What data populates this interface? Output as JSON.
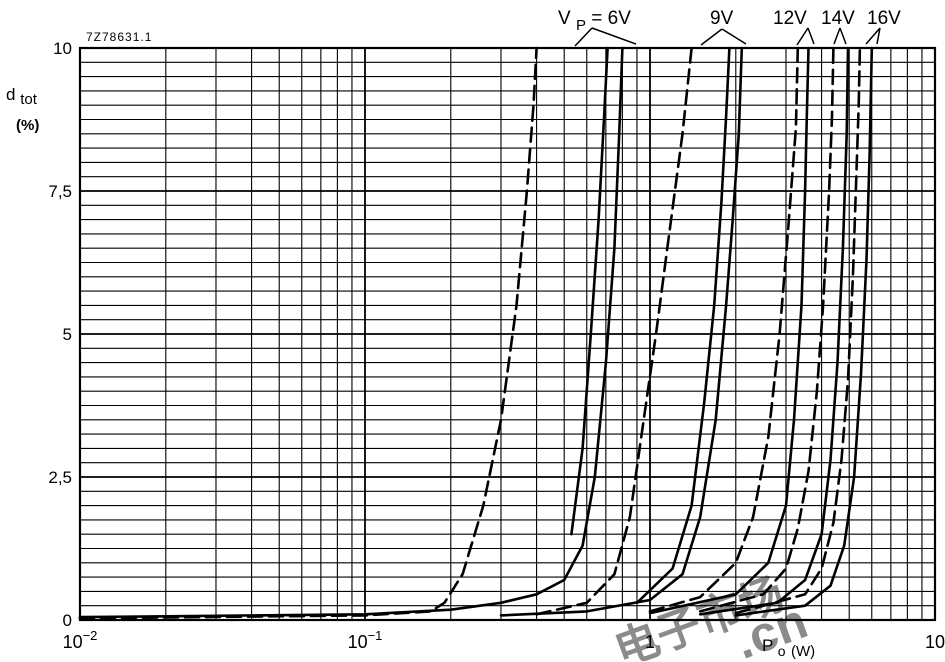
{
  "chart_data": {
    "type": "line",
    "figure_code": "7Z78631.1",
    "y_label_main": "d",
    "y_label_sub": "tot",
    "y_unit": "(%)",
    "x_label_main": "P",
    "x_label_sub": "o",
    "x_unit": "(W)",
    "x_scale": "log",
    "xlim": [
      0.01,
      10
    ],
    "ylim": [
      0,
      10
    ],
    "grid": true,
    "x_tick_labels": [
      {
        "value": 0.01,
        "base": "10",
        "exp": "−2"
      },
      {
        "value": 0.1,
        "base": "10",
        "exp": "−1"
      },
      {
        "value": 1,
        "base": "1",
        "exp": ""
      },
      {
        "value": 10,
        "base": "10",
        "exp": ""
      }
    ],
    "y_tick_labels": [
      {
        "value": 0,
        "text": "0"
      },
      {
        "value": 2.5,
        "text": "2,5"
      },
      {
        "value": 5,
        "text": "5"
      },
      {
        "value": 7.5,
        "text": "7,5"
      },
      {
        "value": 10,
        "text": "10"
      }
    ],
    "curve_labels": {
      "vp_main": "V",
      "vp_sub": "P",
      "vp_rest": " = 6V",
      "v9": "9V",
      "v12": "12V",
      "v14": "14V",
      "v16": "16V"
    },
    "series": [
      {
        "voltage": 6,
        "style": "dashed",
        "points": [
          [
            0.01,
            0.03
          ],
          [
            0.1,
            0.08
          ],
          [
            0.17,
            0.15
          ],
          [
            0.19,
            0.3
          ],
          [
            0.22,
            0.8
          ],
          [
            0.26,
            2.0
          ],
          [
            0.3,
            3.5
          ],
          [
            0.34,
            5.5
          ],
          [
            0.37,
            7.5
          ],
          [
            0.39,
            9.0
          ],
          [
            0.4,
            10
          ]
        ]
      },
      {
        "voltage": 6,
        "style": "solid",
        "points": [
          [
            0.01,
            0.05
          ],
          [
            0.1,
            0.1
          ],
          [
            0.2,
            0.18
          ],
          [
            0.3,
            0.3
          ],
          [
            0.4,
            0.45
          ],
          [
            0.5,
            0.7
          ],
          [
            0.58,
            1.3
          ],
          [
            0.64,
            2.5
          ],
          [
            0.7,
            4.5
          ],
          [
            0.75,
            6.5
          ],
          [
            0.78,
            8.5
          ],
          [
            0.8,
            10
          ]
        ]
      },
      {
        "voltage": 6,
        "style": "solid",
        "points": [
          [
            0.53,
            1.5
          ],
          [
            0.58,
            3.0
          ],
          [
            0.62,
            5.0
          ],
          [
            0.66,
            7.0
          ],
          [
            0.69,
            8.8
          ],
          [
            0.71,
            10
          ]
        ]
      },
      {
        "voltage": 9,
        "style": "dashed",
        "points": [
          [
            0.4,
            0.1
          ],
          [
            0.6,
            0.3
          ],
          [
            0.75,
            0.8
          ],
          [
            0.85,
            1.8
          ],
          [
            0.95,
            3.5
          ],
          [
            1.05,
            5.0
          ],
          [
            1.15,
            6.5
          ],
          [
            1.3,
            8.5
          ],
          [
            1.4,
            10
          ]
        ]
      },
      {
        "voltage": 9,
        "style": "solid",
        "points": [
          [
            0.3,
            0.08
          ],
          [
            0.6,
            0.15
          ],
          [
            1.0,
            0.35
          ],
          [
            1.3,
            0.8
          ],
          [
            1.5,
            1.8
          ],
          [
            1.7,
            3.5
          ],
          [
            1.85,
            5.5
          ],
          [
            1.95,
            7.0
          ],
          [
            2.05,
            8.5
          ],
          [
            2.1,
            10
          ]
        ]
      },
      {
        "voltage": 9,
        "style": "solid",
        "points": [
          [
            0.9,
            0.3
          ],
          [
            1.2,
            0.9
          ],
          [
            1.4,
            2.0
          ],
          [
            1.55,
            3.8
          ],
          [
            1.68,
            5.5
          ],
          [
            1.78,
            7.3
          ],
          [
            1.85,
            8.8
          ],
          [
            1.9,
            10
          ]
        ]
      },
      {
        "voltage": 12,
        "style": "dashed",
        "points": [
          [
            1.0,
            0.15
          ],
          [
            1.5,
            0.4
          ],
          [
            2.0,
            1.0
          ],
          [
            2.3,
            1.8
          ],
          [
            2.6,
            3.2
          ],
          [
            2.85,
            5.0
          ],
          [
            3.05,
            6.8
          ],
          [
            3.25,
            8.6
          ],
          [
            3.3,
            10
          ]
        ]
      },
      {
        "voltage": 12,
        "style": "solid",
        "points": [
          [
            1.0,
            0.12
          ],
          [
            2.0,
            0.45
          ],
          [
            2.6,
            1.0
          ],
          [
            3.0,
            2.0
          ],
          [
            3.2,
            3.5
          ],
          [
            3.4,
            5.5
          ],
          [
            3.5,
            7.5
          ],
          [
            3.55,
            8.8
          ],
          [
            3.6,
            10
          ]
        ]
      },
      {
        "voltage": 14,
        "style": "dashed",
        "points": [
          [
            1.5,
            0.15
          ],
          [
            2.5,
            0.45
          ],
          [
            3.0,
            0.9
          ],
          [
            3.3,
            1.6
          ],
          [
            3.6,
            2.6
          ],
          [
            3.85,
            4.0
          ],
          [
            4.05,
            5.5
          ],
          [
            4.25,
            7.5
          ],
          [
            4.35,
            8.8
          ],
          [
            4.4,
            10
          ]
        ]
      },
      {
        "voltage": 14,
        "style": "solid",
        "points": [
          [
            1.5,
            0.1
          ],
          [
            2.8,
            0.3
          ],
          [
            3.5,
            0.7
          ],
          [
            4.0,
            1.5
          ],
          [
            4.3,
            2.8
          ],
          [
            4.55,
            4.5
          ],
          [
            4.75,
            6.5
          ],
          [
            4.9,
            8.5
          ],
          [
            4.95,
            10
          ]
        ]
      },
      {
        "voltage": 16,
        "style": "dashed",
        "points": [
          [
            2.0,
            0.12
          ],
          [
            3.5,
            0.45
          ],
          [
            4.0,
            0.9
          ],
          [
            4.4,
            1.7
          ],
          [
            4.7,
            2.8
          ],
          [
            4.95,
            4.2
          ],
          [
            5.15,
            6.0
          ],
          [
            5.3,
            7.8
          ],
          [
            5.4,
            9.0
          ],
          [
            5.45,
            10
          ]
        ]
      },
      {
        "voltage": 16,
        "style": "solid",
        "points": [
          [
            2.0,
            0.08
          ],
          [
            3.5,
            0.25
          ],
          [
            4.3,
            0.6
          ],
          [
            4.8,
            1.3
          ],
          [
            5.2,
            2.5
          ],
          [
            5.5,
            4.3
          ],
          [
            5.75,
            6.3
          ],
          [
            5.9,
            8.2
          ],
          [
            6.0,
            10
          ]
        ]
      }
    ],
    "watermark_text": "电子市场",
    "watermark_text_2": ".cn",
    "watermark_color": "#c0392b"
  }
}
